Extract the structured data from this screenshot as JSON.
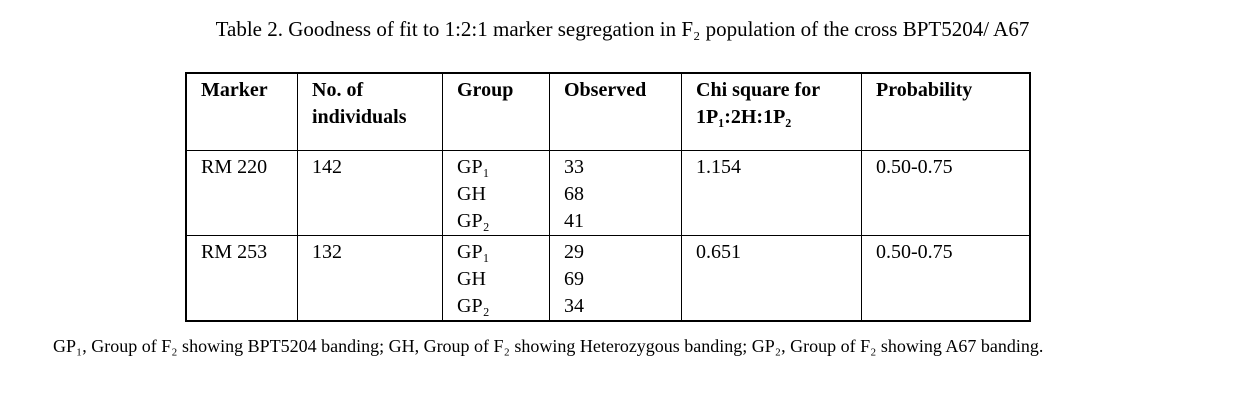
{
  "title": "Table 2. Goodness of fit to 1:2:1 marker segregation in F₂ population of the cross BPT5204/ A67",
  "table": {
    "headers": [
      "Marker",
      "No. of individuals",
      "Group",
      "Observed",
      "Chi square for 1P₁:2H:1P₂",
      "Probability"
    ],
    "rows": [
      {
        "marker": "RM 220",
        "individuals": 142,
        "groups": [
          "GP₁",
          "GH",
          "GP₂"
        ],
        "observed": [
          33,
          68,
          41
        ],
        "chi_square": 1.154,
        "probability": "0.50-0.75"
      },
      {
        "marker": "RM 253",
        "individuals": 132,
        "groups": [
          "GP₁",
          "GH",
          "GP₂"
        ],
        "observed": [
          29,
          69,
          34
        ],
        "chi_square": 0.651,
        "probability": "0.50-0.75"
      }
    ]
  },
  "footnote": "GP₁, Group of F₂ showing BPT5204 banding; GH, Group of F₂ showing Heterozygous banding; GP₂, Group of F₂ showing A67 banding."
}
